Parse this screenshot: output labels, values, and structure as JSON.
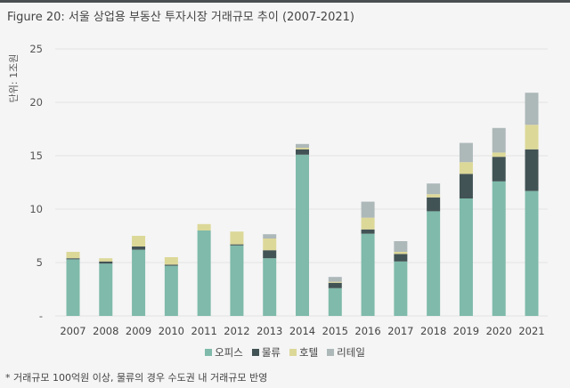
{
  "title": "Figure 20: 서울 상업용 부동산 투자시장 거래규모 추이 (2007-2021)",
  "footnote": "* 거래규모 100억원 이상, 물류의 경우 수도권 내 거래규모 반영",
  "chart_data": {
    "type": "bar",
    "stacked": true,
    "title": "",
    "ylabel": "단위: 1조원",
    "xlabel": "",
    "ylim": [
      0,
      25
    ],
    "yticks": [
      0,
      5,
      10,
      15,
      20,
      25
    ],
    "ytick_labels": [
      "-",
      "5",
      "10",
      "15",
      "20",
      "25"
    ],
    "grid": true,
    "legend_position": "bottom",
    "categories": [
      "2007",
      "2008",
      "2009",
      "2010",
      "2011",
      "2012",
      "2013",
      "2014",
      "2015",
      "2016",
      "2017",
      "2018",
      "2019",
      "2020",
      "2021"
    ],
    "series": [
      {
        "name": "오피스",
        "color": "#7fbaaa",
        "values": [
          5.3,
          4.9,
          6.2,
          4.7,
          8.0,
          6.6,
          5.4,
          15.1,
          2.6,
          7.7,
          5.1,
          9.8,
          11.0,
          12.6,
          11.7
        ]
      },
      {
        "name": "물류",
        "color": "#425355",
        "values": [
          0.1,
          0.2,
          0.3,
          0.1,
          0.0,
          0.1,
          0.75,
          0.5,
          0.5,
          0.4,
          0.7,
          1.3,
          2.3,
          2.3,
          3.9
        ]
      },
      {
        "name": "호텔",
        "color": "#dcd898",
        "values": [
          0.6,
          0.3,
          1.0,
          0.7,
          0.6,
          1.2,
          1.1,
          0.15,
          0.1,
          1.1,
          0.2,
          0.3,
          1.1,
          0.4,
          2.3
        ]
      },
      {
        "name": "리테일",
        "color": "#adb8b9",
        "values": [
          0,
          0,
          0,
          0,
          0,
          0,
          0.4,
          0.35,
          0.45,
          1.5,
          1.0,
          1.0,
          1.8,
          2.3,
          3.0
        ]
      }
    ]
  }
}
